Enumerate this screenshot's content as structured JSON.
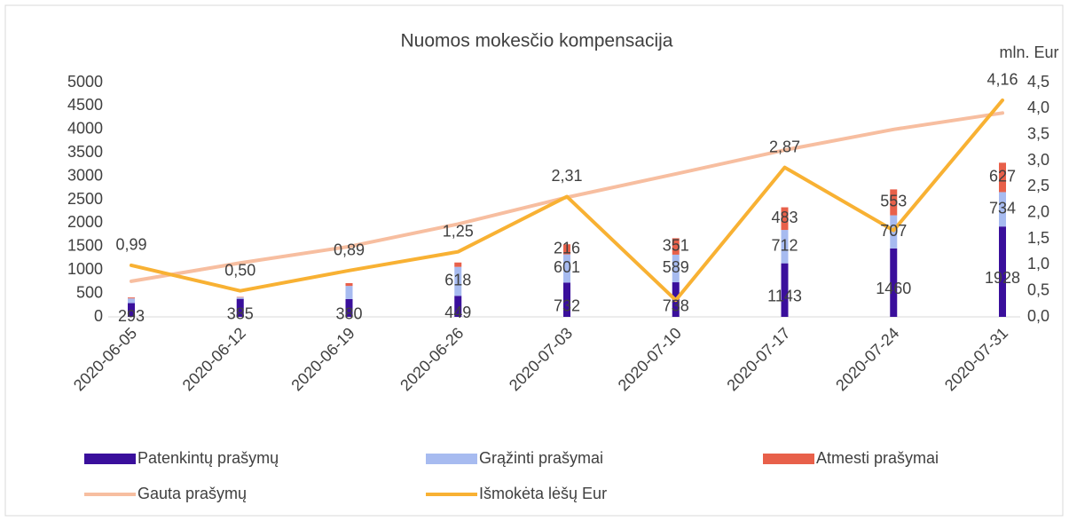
{
  "chart_data": {
    "type": "bar",
    "title": "Nuomos mokesčio kompensacija",
    "y2_label": "mln. Eur",
    "categories": [
      "2020-06-05",
      "2020-06-12",
      "2020-06-19",
      "2020-06-26",
      "2020-07-03",
      "2020-07-10",
      "2020-07-17",
      "2020-07-24",
      "2020-07-31"
    ],
    "stacked": true,
    "series": [
      {
        "name": "Patenkintų prašymų",
        "type": "bar",
        "color": "#3a0f9c",
        "values": [
          293,
          385,
          380,
          449,
          732,
          738,
          1143,
          1460,
          1928
        ],
        "value_labels": [
          "293",
          "385",
          "380",
          "449",
          "732",
          "738",
          "1143",
          "1460",
          "1928"
        ]
      },
      {
        "name": "Grąžinti prašymai",
        "type": "bar",
        "color": "#a7bbf0",
        "values": [
          100,
          30,
          280,
          618,
          601,
          589,
          712,
          707,
          734
        ],
        "value_labels": [
          null,
          null,
          null,
          "618",
          "601",
          "589",
          "712",
          "707",
          "734"
        ]
      },
      {
        "name": "Atmesti prašymai",
        "type": "bar",
        "color": "#e8604a",
        "values": [
          20,
          10,
          60,
          93,
          216,
          351,
          483,
          553,
          627
        ],
        "value_labels": [
          null,
          null,
          null,
          null,
          "216",
          "351",
          "483",
          "553",
          "627"
        ]
      },
      {
        "name": "Gauta prašymų",
        "type": "line",
        "color": "#f7bea0",
        "values": [
          760,
          1150,
          1500,
          1980,
          2550,
          3050,
          3560,
          4000,
          4350
        ]
      },
      {
        "name": "Išmokėta lėšų Eur",
        "type": "line",
        "axis": "y2",
        "color": "#f8b133",
        "values": [
          0.99,
          0.5,
          0.89,
          1.25,
          2.31,
          0.32,
          2.87,
          1.66,
          4.16
        ],
        "value_labels": [
          "0,99",
          "0,50",
          "0,89",
          "1,25",
          "2,31",
          null,
          "2,87",
          null,
          "4,16"
        ]
      }
    ],
    "ylim": [
      0,
      5000
    ],
    "yticks": [
      0,
      500,
      1000,
      1500,
      2000,
      2500,
      3000,
      3500,
      4000,
      4500,
      5000
    ],
    "y2lim": [
      0,
      4.5
    ],
    "y2ticks": [
      {
        "value": 0,
        "label": "0,0"
      },
      {
        "value": 0.5,
        "label": "0,5"
      },
      {
        "value": 1,
        "label": "1,0"
      },
      {
        "value": 1.5,
        "label": "1,5"
      },
      {
        "value": 2,
        "label": "2,0"
      },
      {
        "value": 2.5,
        "label": "2,5"
      },
      {
        "value": 3,
        "label": "3,0"
      },
      {
        "value": 3.5,
        "label": "3,5"
      },
      {
        "value": 4,
        "label": "4,0"
      },
      {
        "value": 4.5,
        "label": "4,5"
      }
    ],
    "grid": false,
    "legend": "bottom"
  }
}
